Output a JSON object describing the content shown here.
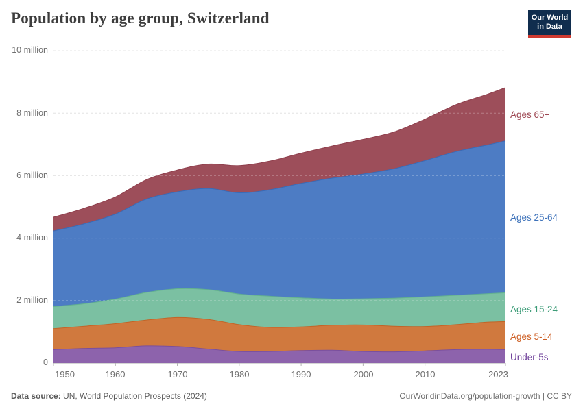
{
  "header": {
    "title": "Population by age group, Switzerland",
    "logo_line1": "Our World",
    "logo_line2": "in Data",
    "logo_bg": "#102d4e",
    "logo_accent": "#cf3a30"
  },
  "footer": {
    "source_label": "Data source:",
    "source_text": " UN, World Population Prospects (2024)",
    "link_text": "OurWorldinData.org/population-growth | CC BY"
  },
  "chart_data": {
    "type": "area",
    "stacked": true,
    "title": "Population by age group, Switzerland",
    "units": "million people",
    "grid": "dashed-horizontal",
    "legend_position": "right-of-plot",
    "xlim": [
      1950,
      2023
    ],
    "ylim": [
      0,
      10
    ],
    "x": [
      1950,
      1955,
      1960,
      1965,
      1970,
      1975,
      1980,
      1985,
      1990,
      1995,
      2000,
      2005,
      2010,
      2015,
      2020,
      2023
    ],
    "x_ticks": [
      "1950",
      "1960",
      "1970",
      "1980",
      "1990",
      "2000",
      "2010",
      "2023"
    ],
    "y_ticks": [
      {
        "value": 0,
        "label": "0"
      },
      {
        "value": 2,
        "label": "2 million"
      },
      {
        "value": 4,
        "label": "4 million"
      },
      {
        "value": 6,
        "label": "6 million"
      },
      {
        "value": 8,
        "label": "8 million"
      },
      {
        "value": 10,
        "label": "10 million"
      }
    ],
    "series": [
      {
        "name": "under-5s",
        "label": "Under-5s",
        "color": "#8d63ac",
        "edge": "#7a4f9d",
        "label_color": "#6d3e98",
        "values": [
          0.43,
          0.47,
          0.49,
          0.55,
          0.53,
          0.45,
          0.37,
          0.37,
          0.4,
          0.41,
          0.37,
          0.36,
          0.39,
          0.43,
          0.44,
          0.43
        ]
      },
      {
        "name": "ages-5-14",
        "label": "Ages 5-14",
        "color": "#d0793e",
        "edge": "#c26427",
        "label_color": "#ce5f24",
        "values": [
          0.67,
          0.71,
          0.77,
          0.83,
          0.93,
          0.95,
          0.86,
          0.77,
          0.76,
          0.8,
          0.85,
          0.82,
          0.78,
          0.8,
          0.87,
          0.9
        ]
      },
      {
        "name": "ages-15-24",
        "label": "Ages 15-24",
        "color": "#7bc0a2",
        "edge": "#62b08f",
        "label_color": "#3d9c78",
        "values": [
          0.71,
          0.72,
          0.79,
          0.88,
          0.92,
          0.95,
          0.98,
          1.0,
          0.93,
          0.84,
          0.84,
          0.9,
          0.95,
          0.94,
          0.91,
          0.92
        ]
      },
      {
        "name": "ages-25-64",
        "label": "Ages 25-64",
        "color": "#4d7cc4",
        "edge": "#3a6ab5",
        "label_color": "#3d72ba",
        "values": [
          2.42,
          2.56,
          2.72,
          2.99,
          3.1,
          3.24,
          3.24,
          3.41,
          3.66,
          3.87,
          3.99,
          4.14,
          4.36,
          4.6,
          4.76,
          4.86
        ]
      },
      {
        "name": "ages-65plus",
        "label": "Ages 65+",
        "color": "#9d4e5a",
        "edge": "#8e3e4c",
        "label_color": "#9e4853",
        "values": [
          0.44,
          0.5,
          0.55,
          0.62,
          0.7,
          0.78,
          0.87,
          0.92,
          0.97,
          1.03,
          1.11,
          1.18,
          1.33,
          1.5,
          1.62,
          1.71
        ]
      }
    ]
  }
}
